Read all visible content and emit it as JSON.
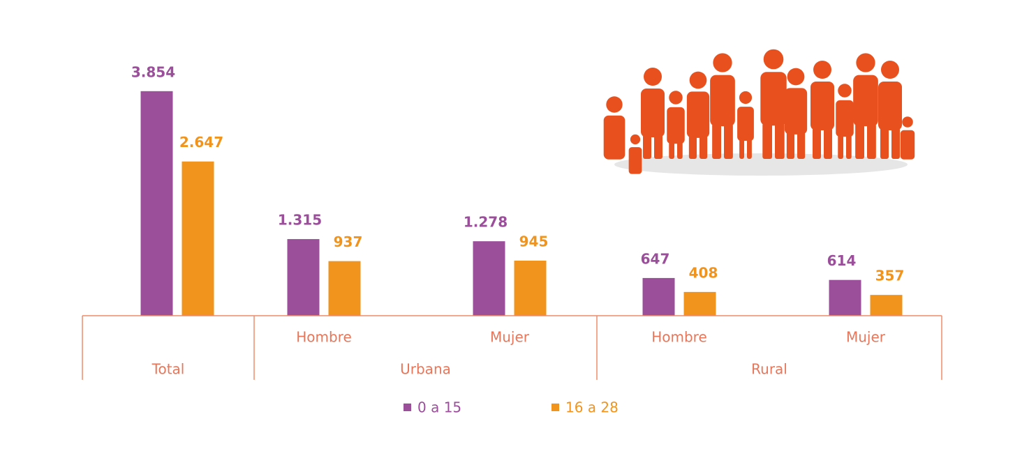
{
  "chart_data": {
    "type": "bar",
    "categories": [
      null,
      "Hombre",
      "Mujer",
      "Hombre",
      "Mujer"
    ],
    "groups": [
      "Total",
      "Urbana",
      "Rural"
    ],
    "series": [
      {
        "name": "0 a 15",
        "color": "#9b4f9b",
        "values": [
          3854,
          1315,
          1278,
          647,
          614
        ],
        "value_labels": [
          "3.854",
          "1.315",
          "1.278",
          "647",
          "614"
        ]
      },
      {
        "name": "16 a 28",
        "color": "#f0941e",
        "values": [
          2647,
          937,
          945,
          408,
          357
        ],
        "value_labels": [
          "2.647",
          "937",
          "945",
          "408",
          "357"
        ]
      }
    ]
  }
}
